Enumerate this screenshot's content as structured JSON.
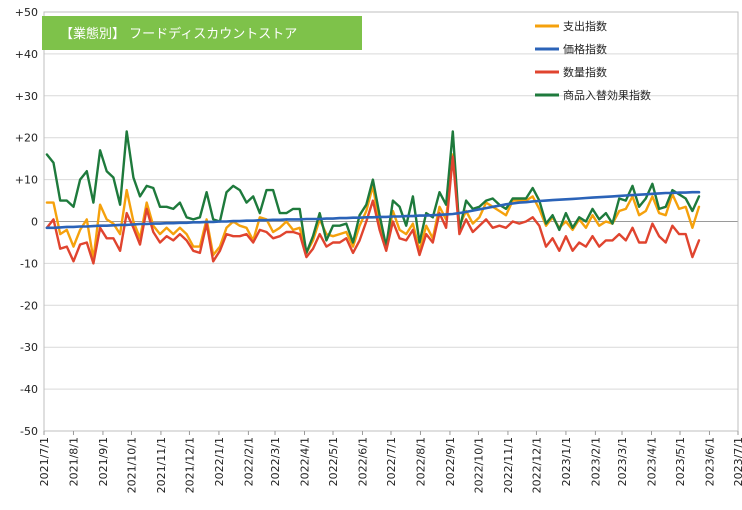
{
  "chart_data": {
    "type": "line",
    "title": "【業態別】 フードディスカウントストア",
    "title_bg": "#7ec24a",
    "xlabel": "",
    "ylabel": "",
    "ylim": [
      -50,
      50
    ],
    "y_ticks": [
      50,
      40,
      30,
      20,
      10,
      0,
      -10,
      -20,
      -30,
      -40,
      -50
    ],
    "y_tick_labels": [
      "+50",
      "+40",
      "+30",
      "+20",
      "+10",
      "0",
      "-10",
      "-20",
      "-30",
      "-40",
      "-50"
    ],
    "x_start": "2021/7/4",
    "x_step_days": 7,
    "x_tick_labels": [
      "2021/7/1",
      "2021/8/1",
      "2021/9/1",
      "2021/10/1",
      "2021/11/1",
      "2021/12/1",
      "2022/1/1",
      "2022/2/1",
      "2022/3/1",
      "2022/4/1",
      "2022/5/1",
      "2022/6/1",
      "2022/7/1",
      "2022/8/1",
      "2022/9/1",
      "2022/10/1",
      "2022/11/1",
      "2022/12/1",
      "2023/1/1",
      "2023/2/1",
      "2023/3/1",
      "2023/4/1",
      "2023/5/1",
      "2023/6/1",
      "2023/7/1"
    ],
    "grid": true,
    "legend_position": "top-right",
    "series": [
      {
        "name": "支出指数",
        "color": "#f5a10c",
        "values": [
          4.5,
          4.5,
          -3.0,
          -2.0,
          -6.0,
          -2.0,
          0.5,
          -9.0,
          4.0,
          0.5,
          -0.5,
          -3.0,
          7.5,
          0.0,
          -4.0,
          4.5,
          -1.0,
          -3.0,
          -1.5,
          -3.0,
          -1.5,
          -3.0,
          -6.0,
          -6.0,
          0.5,
          -8.0,
          -6.0,
          -1.5,
          0.0,
          -1.0,
          -1.5,
          -4.5,
          1.0,
          0.5,
          -2.5,
          -1.5,
          0.0,
          -2.0,
          -1.5,
          -7.5,
          -4.5,
          0.5,
          -3.0,
          -3.5,
          -3.0,
          -2.5,
          -6.0,
          -1.0,
          2.5,
          8.5,
          -1.0,
          -6.0,
          2.5,
          -2.0,
          -3.0,
          -0.5,
          -7.0,
          -1.0,
          -4.0,
          3.5,
          0.5,
          16.0,
          -1.0,
          2.5,
          -0.5,
          1.0,
          4.5,
          3.5,
          2.5,
          1.5,
          5.0,
          5.0,
          5.0,
          6.0,
          3.0,
          -1.0,
          1.0,
          -1.5,
          0.0,
          -2.0,
          0.5,
          -1.5,
          1.5,
          -1.0,
          0.0,
          -0.5,
          2.5,
          3.0,
          6.0,
          1.5,
          2.5,
          6.0,
          2.0,
          1.5,
          6.5,
          3.0,
          3.5,
          -1.5,
          3.5
        ]
      },
      {
        "name": "価格指数",
        "color": "#2b63b8",
        "values": [
          -1.5,
          -1.5,
          -1.4,
          -1.3,
          -1.3,
          -1.2,
          -1.2,
          -1.1,
          -1.0,
          -1.0,
          -0.9,
          -0.8,
          -0.8,
          -0.7,
          -0.6,
          -0.6,
          -0.5,
          -0.5,
          -0.4,
          -0.4,
          -0.3,
          -0.3,
          -0.2,
          -0.2,
          -0.1,
          -0.1,
          0.0,
          0.0,
          0.1,
          0.1,
          0.2,
          0.2,
          0.3,
          0.3,
          0.4,
          0.4,
          0.5,
          0.5,
          0.5,
          0.6,
          0.6,
          0.6,
          0.7,
          0.7,
          0.8,
          0.8,
          0.9,
          0.9,
          1.0,
          1.0,
          1.1,
          1.1,
          1.2,
          1.2,
          1.3,
          1.3,
          1.4,
          1.4,
          1.5,
          1.6,
          1.7,
          1.8,
          2.0,
          2.3,
          2.6,
          2.9,
          3.2,
          3.5,
          3.8,
          4.1,
          4.3,
          4.5,
          4.6,
          4.8,
          4.9,
          5.0,
          5.1,
          5.2,
          5.3,
          5.4,
          5.5,
          5.6,
          5.7,
          5.8,
          5.9,
          6.0,
          6.1,
          6.2,
          6.3,
          6.4,
          6.5,
          6.6,
          6.7,
          6.8,
          6.8,
          6.9,
          6.9,
          7.0,
          7.0
        ]
      },
      {
        "name": "数量指数",
        "color": "#e0442f",
        "values": [
          -1.5,
          0.5,
          -6.5,
          -6.0,
          -9.5,
          -5.5,
          -5.0,
          -10.0,
          -1.5,
          -4.0,
          -4.0,
          -7.0,
          2.0,
          -1.5,
          -5.5,
          3.0,
          -2.5,
          -5.0,
          -3.5,
          -4.5,
          -3.0,
          -4.5,
          -7.0,
          -7.5,
          -0.5,
          -9.5,
          -7.0,
          -3.0,
          -3.5,
          -3.5,
          -3.0,
          -5.0,
          -2.0,
          -2.5,
          -4.0,
          -3.5,
          -2.5,
          -2.5,
          -3.0,
          -8.5,
          -6.5,
          -3.0,
          -6.0,
          -5.0,
          -5.0,
          -4.0,
          -7.5,
          -4.5,
          0.0,
          5.0,
          -2.0,
          -7.0,
          0.0,
          -4.0,
          -4.5,
          -2.0,
          -8.0,
          -3.0,
          -5.0,
          2.0,
          -1.5,
          15.5,
          -3.0,
          0.5,
          -2.5,
          -1.0,
          0.5,
          -1.5,
          -1.0,
          -1.5,
          0.0,
          -0.5,
          0.0,
          1.0,
          -1.0,
          -6.0,
          -4.0,
          -7.0,
          -3.5,
          -7.0,
          -5.0,
          -6.0,
          -3.5,
          -6.0,
          -4.5,
          -4.5,
          -3.0,
          -4.5,
          -1.5,
          -5.0,
          -5.0,
          -0.5,
          -3.5,
          -5.0,
          -1.0,
          -3.0,
          -3.0,
          -8.5,
          -4.5
        ]
      },
      {
        "name": "商品入替効果指数",
        "color": "#1e7a3c",
        "values": [
          16.0,
          14.0,
          5.0,
          5.0,
          3.5,
          10.0,
          12.0,
          4.5,
          17.0,
          12.0,
          10.5,
          4.0,
          21.5,
          10.5,
          6.0,
          8.5,
          8.0,
          3.5,
          3.5,
          3.0,
          4.5,
          1.0,
          0.5,
          1.0,
          7.0,
          0.5,
          0.0,
          7.0,
          8.5,
          7.5,
          4.5,
          6.0,
          2.0,
          7.5,
          7.5,
          2.0,
          2.0,
          3.0,
          3.0,
          -7.5,
          -3.5,
          2.0,
          -4.5,
          -1.0,
          -1.0,
          -0.5,
          -5.0,
          1.5,
          4.0,
          10.0,
          1.5,
          -6.0,
          5.0,
          3.5,
          -1.0,
          6.0,
          -5.0,
          2.0,
          1.0,
          7.0,
          4.0,
          21.5,
          -2.0,
          5.0,
          3.0,
          3.5,
          5.0,
          5.5,
          4.0,
          3.0,
          5.5,
          5.5,
          5.5,
          8.0,
          5.0,
          -0.5,
          1.5,
          -2.0,
          2.0,
          -1.5,
          1.0,
          0.0,
          3.0,
          0.5,
          2.0,
          -0.5,
          5.5,
          5.0,
          8.5,
          3.5,
          5.5,
          9.0,
          3.0,
          3.5,
          7.5,
          6.5,
          5.5,
          2.5,
          6.0
        ]
      }
    ]
  }
}
